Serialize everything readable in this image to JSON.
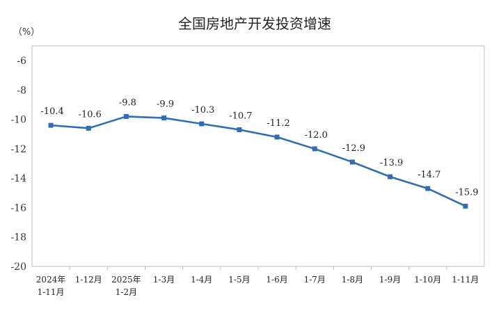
{
  "chart_data": {
    "type": "line",
    "title": "全国房地产开发投资增速",
    "unit_label": "（%）",
    "categories": [
      [
        "2024年",
        "1-11月"
      ],
      [
        "1-12月"
      ],
      [
        "2025年",
        "1-2月"
      ],
      [
        "1-3月"
      ],
      [
        "1-4月"
      ],
      [
        "1-5月"
      ],
      [
        "1-6月"
      ],
      [
        "1-7月"
      ],
      [
        "1-8月"
      ],
      [
        "1-9月"
      ],
      [
        "1-10月"
      ],
      [
        "1-11月"
      ]
    ],
    "series": [
      {
        "values": [
          -10.4,
          -10.6,
          -9.8,
          -9.9,
          -10.3,
          -10.7,
          -11.2,
          -12.0,
          -12.9,
          -13.9,
          -14.7,
          -15.9
        ],
        "labels": [
          "-10.4",
          "-10.6",
          "-9.8",
          "-9.9",
          "-10.3",
          "-10.7",
          "-11.2",
          "-12.0",
          "-12.9",
          "-13.9",
          "-14.7",
          "-15.9"
        ],
        "color": "#2f6eb5"
      }
    ],
    "yticks": [
      -6,
      -8,
      -10,
      -12,
      -14,
      -16,
      -18,
      -20
    ],
    "ylim": [
      -20,
      -5
    ],
    "grid": false,
    "legend": "none"
  }
}
